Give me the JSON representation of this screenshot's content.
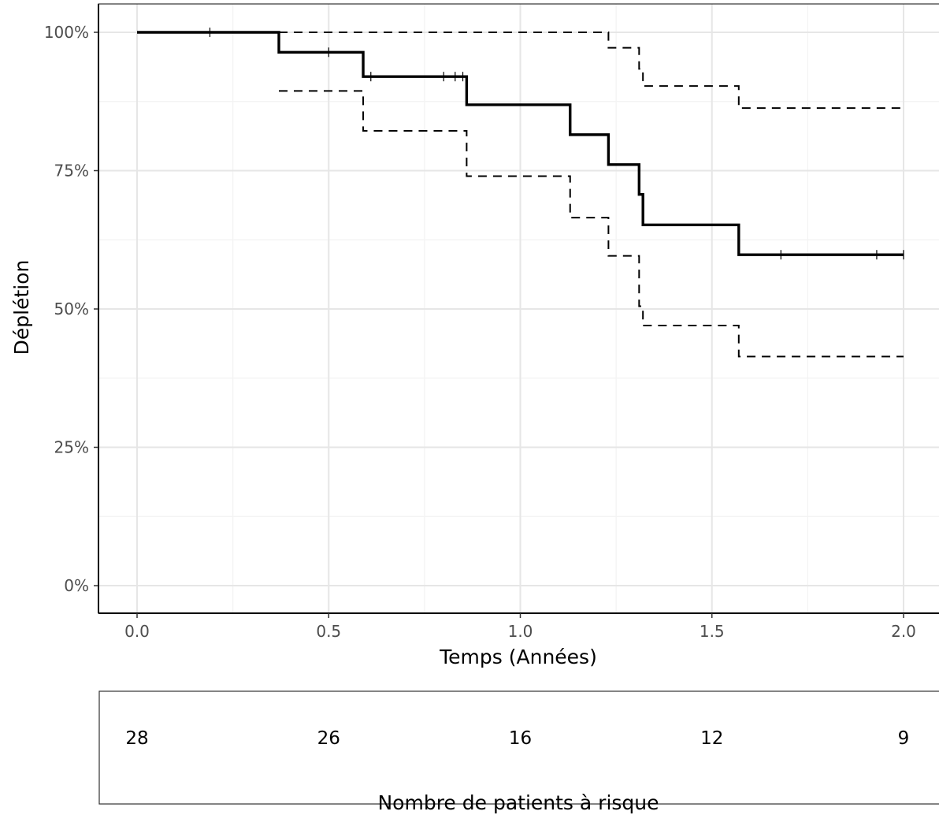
{
  "chart_data": {
    "type": "line",
    "chart_kind": "kaplan-meier step",
    "xlabel": "Temps (Années)",
    "ylabel": "Déplétion",
    "xlim": [
      -0.1,
      2.1
    ],
    "ylim": [
      -0.05,
      1.05
    ],
    "x_ticks": [
      0.0,
      0.5,
      1.0,
      1.5,
      2.0
    ],
    "x_tick_labels": [
      "0.0",
      "0.5",
      "1.0",
      "1.5",
      "2.0"
    ],
    "y_ticks": [
      0,
      0.25,
      0.5,
      0.75,
      1.0
    ],
    "y_tick_labels": [
      "0%",
      "25%",
      "50%",
      "75%",
      "100%"
    ],
    "grid": true,
    "series": [
      {
        "role": "estimate",
        "style": "solid",
        "x": [
          0.0,
          0.37,
          0.59,
          0.86,
          1.13,
          1.23,
          1.31,
          1.32,
          1.57,
          2.0
        ],
        "y": [
          1.0,
          0.964,
          0.92,
          0.869,
          0.815,
          0.761,
          0.707,
          0.652,
          0.598,
          0.598
        ],
        "censor_x": [
          0.19,
          0.5,
          0.61,
          0.8,
          0.83,
          0.85,
          1.68,
          1.93,
          2.0
        ],
        "censor_y": [
          1.0,
          0.964,
          0.92,
          0.92,
          0.92,
          0.92,
          0.598,
          0.598,
          0.598
        ]
      },
      {
        "role": "upper confidence bound",
        "style": "dashed",
        "x": [
          0.37,
          0.59,
          0.86,
          1.13,
          1.23,
          1.31,
          1.32,
          1.57,
          2.0
        ],
        "y": [
          1.0,
          1.0,
          1.0,
          1.0,
          0.972,
          0.934,
          0.903,
          0.863,
          0.863
        ]
      },
      {
        "role": "lower confidence bound",
        "style": "dashed",
        "x": [
          0.37,
          0.59,
          0.86,
          1.13,
          1.23,
          1.31,
          1.32,
          1.57,
          2.0
        ],
        "y": [
          0.894,
          0.822,
          0.74,
          0.665,
          0.596,
          0.505,
          0.47,
          0.414,
          0.414
        ]
      }
    ],
    "risk_table": {
      "title": "Nombre de patients à risque",
      "times": [
        0.0,
        0.5,
        1.0,
        1.5,
        2.0
      ],
      "counts": [
        "28",
        "26",
        "16",
        "12",
        "9"
      ]
    }
  }
}
